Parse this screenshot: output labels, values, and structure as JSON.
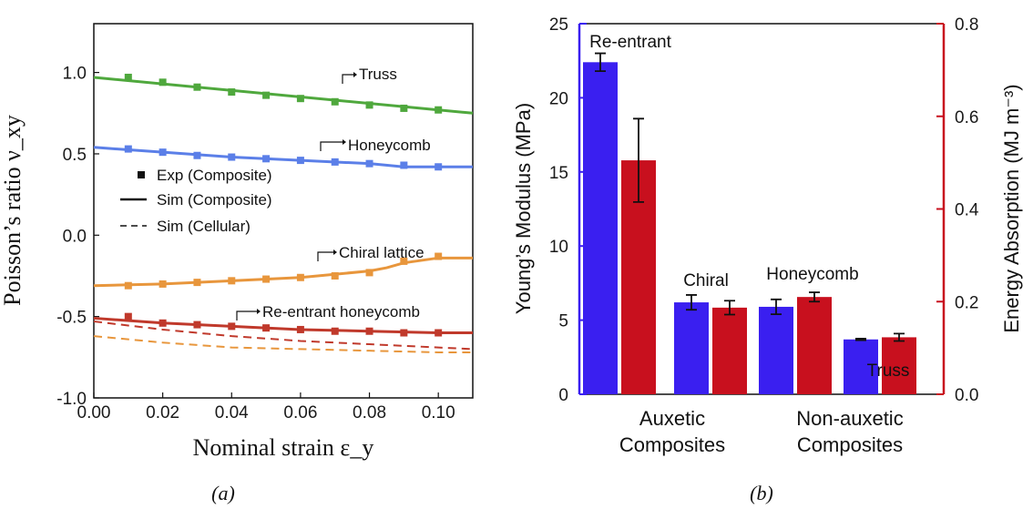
{
  "chart_data": [
    {
      "type": "line",
      "panel": "(a)",
      "xlabel": "Nominal strain ε_y",
      "ylabel": "Poisson’s ratio ν_xy",
      "xlim": [
        0.0,
        0.11
      ],
      "ylim": [
        -1.0,
        1.3
      ],
      "x_ticks": [
        "0.00",
        "0.02",
        "0.04",
        "0.06",
        "0.08",
        "0.10"
      ],
      "y_ticks": [
        "-1.0",
        "-0.5",
        "0.0",
        "0.5",
        "1.0"
      ],
      "legend": {
        "placement": "left",
        "entries": [
          "Exp (Composite)",
          "Sim (Composite)",
          "Sim (Cellular)"
        ]
      },
      "series": [
        {
          "name": "Truss",
          "color": "#4fa83d",
          "sim_composite": {
            "x": [
              0.0,
              0.11
            ],
            "y": [
              0.97,
              0.75
            ]
          },
          "exp_composite": {
            "x": [
              0.01,
              0.02,
              0.03,
              0.04,
              0.05,
              0.06,
              0.07,
              0.08,
              0.09,
              0.1
            ],
            "y": [
              0.97,
              0.94,
              0.91,
              0.88,
              0.86,
              0.84,
              0.82,
              0.8,
              0.78,
              0.77
            ]
          }
        },
        {
          "name": "Honeycomb",
          "color": "#5b7fe8",
          "sim_composite": {
            "x": [
              0.0,
              0.02,
              0.04,
              0.06,
              0.08,
              0.09,
              0.1,
              0.11
            ],
            "y": [
              0.54,
              0.51,
              0.48,
              0.46,
              0.44,
              0.42,
              0.42,
              0.42
            ]
          },
          "exp_composite": {
            "x": [
              0.01,
              0.02,
              0.03,
              0.04,
              0.05,
              0.06,
              0.07,
              0.08,
              0.09,
              0.1
            ],
            "y": [
              0.53,
              0.51,
              0.49,
              0.48,
              0.47,
              0.46,
              0.45,
              0.44,
              0.43,
              0.42
            ]
          }
        },
        {
          "name": "Chiral lattice",
          "color": "#e8963c",
          "sim_composite": {
            "x": [
              0.0,
              0.02,
              0.04,
              0.06,
              0.08,
              0.085,
              0.09,
              0.1,
              0.11
            ],
            "y": [
              -0.31,
              -0.3,
              -0.28,
              -0.26,
              -0.22,
              -0.2,
              -0.17,
              -0.14,
              -0.14
            ]
          },
          "sim_cellular": {
            "x": [
              0.0,
              0.02,
              0.04,
              0.06,
              0.08,
              0.1,
              0.11
            ],
            "y": [
              -0.62,
              -0.66,
              -0.69,
              -0.7,
              -0.71,
              -0.72,
              -0.72
            ]
          },
          "exp_composite": {
            "x": [
              0.01,
              0.02,
              0.03,
              0.04,
              0.05,
              0.06,
              0.07,
              0.08,
              0.09,
              0.1
            ],
            "y": [
              -0.31,
              -0.3,
              -0.29,
              -0.28,
              -0.27,
              -0.26,
              -0.25,
              -0.23,
              -0.16,
              -0.13
            ]
          }
        },
        {
          "name": "Re-entrant honeycomb",
          "color": "#c0392b",
          "sim_composite": {
            "x": [
              0.0,
              0.02,
              0.04,
              0.06,
              0.08,
              0.1,
              0.11
            ],
            "y": [
              -0.51,
              -0.54,
              -0.56,
              -0.58,
              -0.59,
              -0.6,
              -0.6
            ]
          },
          "sim_cellular": {
            "x": [
              0.0,
              0.02,
              0.04,
              0.06,
              0.08,
              0.1,
              0.11
            ],
            "y": [
              -0.53,
              -0.58,
              -0.62,
              -0.65,
              -0.67,
              -0.69,
              -0.7
            ]
          },
          "exp_composite": {
            "x": [
              0.01,
              0.02,
              0.03,
              0.04,
              0.05,
              0.06,
              0.07,
              0.08,
              0.09,
              0.1
            ],
            "y": [
              -0.5,
              -0.54,
              -0.55,
              -0.56,
              -0.57,
              -0.58,
              -0.59,
              -0.59,
              -0.6,
              -0.6
            ]
          }
        }
      ],
      "annotations": [
        "Truss",
        "Honeycomb",
        "Chiral lattice",
        "Re-entrant honeycomb"
      ]
    },
    {
      "type": "bar",
      "panel": "(b)",
      "ylabel": "Young’s Modulus (MPa)",
      "ylabel_right": "Energy Absorption (MJ m⁻³)",
      "ylim": [
        0,
        25
      ],
      "ylim_right": [
        0.0,
        0.8
      ],
      "y_ticks": [
        "0",
        "5",
        "10",
        "15",
        "20",
        "25"
      ],
      "y_ticks_right": [
        "0.0",
        "0.2",
        "0.4",
        "0.6",
        "0.8"
      ],
      "group_labels": [
        [
          "Auxetic",
          "Composites"
        ],
        [
          "Non-auxetic",
          "Composites"
        ]
      ],
      "categories": [
        "Re-entrant",
        "Chiral",
        "Honeycomb",
        "Truss"
      ],
      "series": [
        {
          "name": "Young’s Modulus",
          "axis": "left",
          "color": "#3a1ff0",
          "values": [
            22.4,
            6.2,
            5.9,
            3.7
          ],
          "errors": [
            0.6,
            0.5,
            0.5,
            0.05
          ]
        },
        {
          "name": "Energy Absorption",
          "axis": "right",
          "color": "#c8101e",
          "values": [
            0.505,
            0.187,
            0.21,
            0.123
          ],
          "errors": [
            0.09,
            0.015,
            0.01,
            0.008
          ]
        }
      ]
    }
  ],
  "captions": [
    "(a)",
    "(b)"
  ]
}
